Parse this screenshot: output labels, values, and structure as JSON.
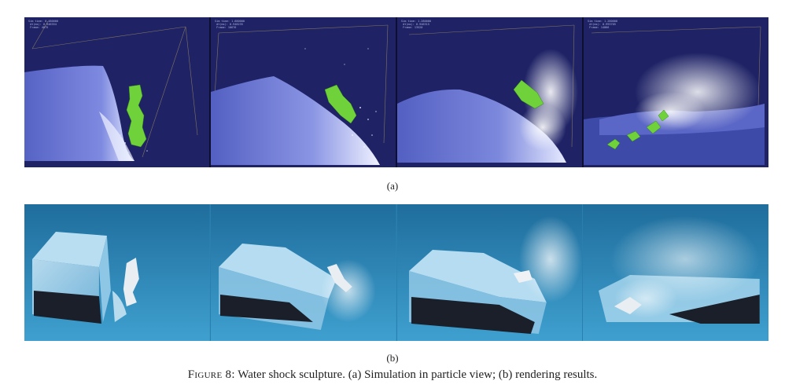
{
  "figure": {
    "label_a": "(a)",
    "label_b": "(b)",
    "caption_prefix": "Figure 8:",
    "caption_text": " Water shock sculpture. (a) Simulation in particle view; (b) rendering results."
  },
  "simulation_frames": [
    {
      "readout": "Sim time: 0.480000\n dt(ms): 0.946354\n Frame: 4875"
    },
    {
      "readout": "Sim time: 1.680000\n dt(ms): 0.948235\n Frame: 10676"
    },
    {
      "readout": "Sim time: 1.280000\n dt(ms): 0.946315\n Frame: 13520"
    },
    {
      "readout": "Sim time: 1.280000\n dt(ms): 0.993705\n Frame: 14866"
    }
  ],
  "colors": {
    "sim_background": "#1f2366",
    "water_particles": "#5a66c8",
    "obstacle": "#6fd23a",
    "render_background": "#2e8ec0",
    "glass_block": "#a8d4ec"
  }
}
